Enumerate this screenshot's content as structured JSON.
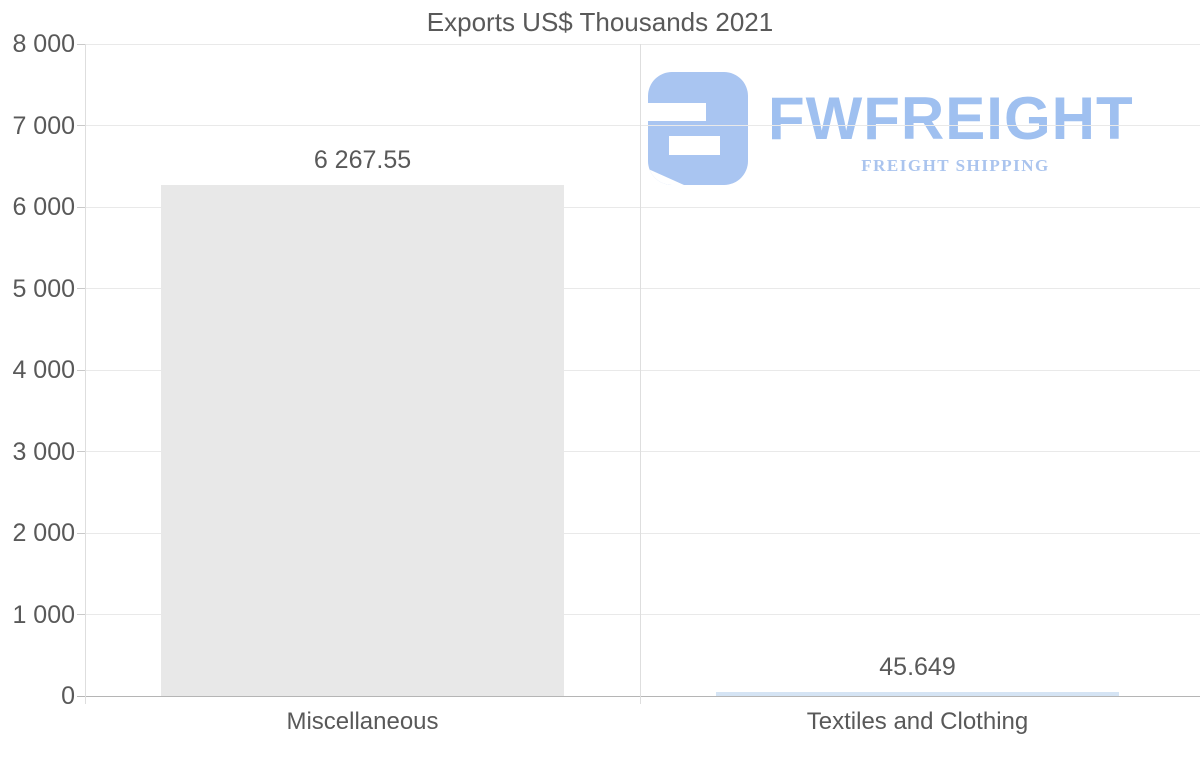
{
  "chart_data": {
    "type": "bar",
    "title": "Exports US$ Thousands 2021",
    "categories": [
      "Miscellaneous",
      "Textiles and Clothing"
    ],
    "values": [
      6267.55,
      45.649
    ],
    "value_labels": [
      "6 267.55",
      "45.649"
    ],
    "bar_colors": [
      "#e8e8e8",
      "#d5e4f4"
    ],
    "xlabel": "",
    "ylabel": "",
    "ylim": [
      0,
      8000
    ],
    "ytick_step": 1000,
    "ytick_labels": [
      "0",
      "1 000",
      "2 000",
      "3 000",
      "4 000",
      "5 000",
      "6 000",
      "7 000",
      "8 000"
    ],
    "grid": "horizontal gridlines on, vertical divider between categories",
    "legend": "none"
  },
  "watermark": {
    "brand": "FWFREIGHT",
    "tagline": "FREIGHT SHIPPING",
    "brand_color": "#9fc0f0",
    "tagline_color": "#aac4ee",
    "icon_color": "#a9c5f1"
  }
}
